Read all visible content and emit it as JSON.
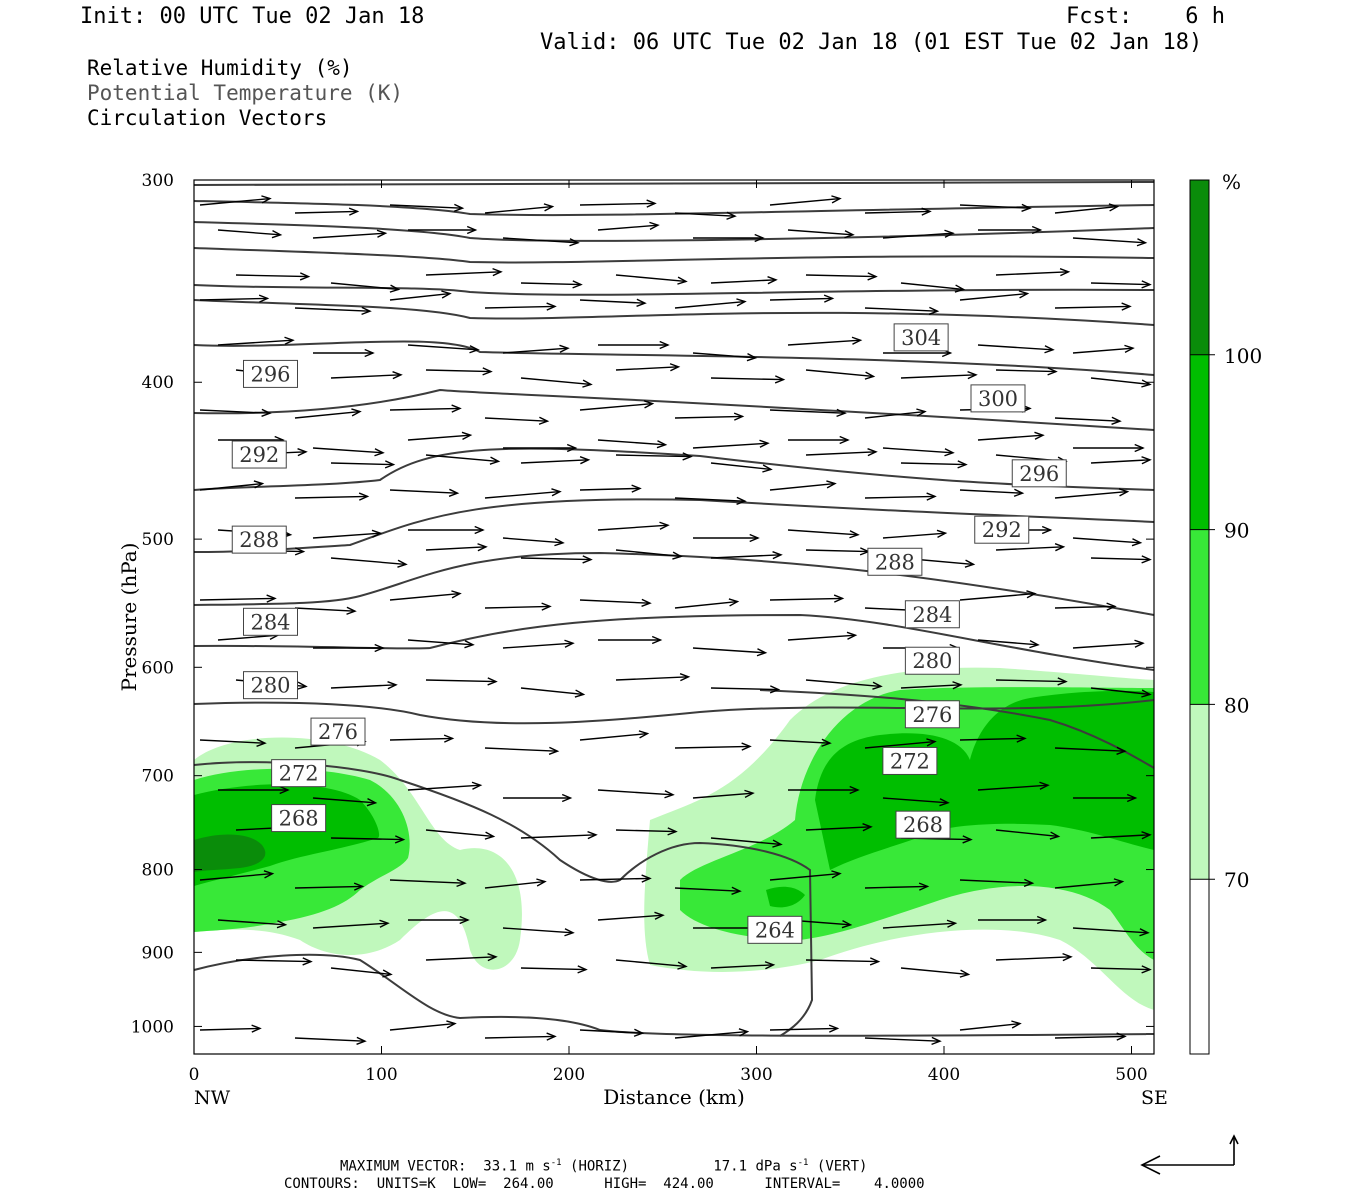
{
  "header": {
    "init": "Init: 00 UTC Tue 02 Jan 18",
    "fcst": "Fcst:    6 h",
    "valid": "Valid: 06 UTC Tue 02 Jan 18 (01 EST Tue 02 Jan 18)"
  },
  "legend": {
    "line1": "Relative Humidity (%)",
    "line2": "Potential Temperature (K)",
    "line3": "Circulation Vectors"
  },
  "footer": {
    "max_vector_label": "MAXIMUM VECTOR:",
    "horiz_value": "33.1 m s",
    "horiz_exp": "-1",
    "horiz_unit": "(HORIZ)",
    "vert_value": "17.1 dPa s",
    "vert_exp": "-1",
    "vert_unit": "(VERT)",
    "contours": "CONTOURS:  UNITS=K  LOW=  264.00      HIGH=  424.00      INTERVAL=    4.0000"
  },
  "colors": {
    "rh70": "#c0f8bc",
    "rh80": "#38e838",
    "rh90": "#00be00",
    "rh100": "#0a8c0a",
    "theta_line": "#3c3c3c",
    "arrow": "#000000"
  },
  "chart_data": {
    "type": "cross-section",
    "xlabel": "Distance (km)",
    "ylabel": "Pressure (hPa)",
    "x_ticks": [
      0,
      100,
      200,
      300,
      400,
      500
    ],
    "y_ticks": [
      300,
      400,
      500,
      600,
      700,
      800,
      900,
      1000
    ],
    "xlim": [
      0,
      512
    ],
    "ylim": [
      1040,
      300
    ],
    "y_scale": "log",
    "left_end_label": "NW",
    "right_end_label": "SE",
    "colorbar": {
      "unit": "%",
      "levels": [
        70,
        80,
        90,
        100
      ],
      "colors": [
        "#ffffff",
        "#c0f8bc",
        "#38e838",
        "#00be00",
        "#0a8c0a"
      ]
    },
    "theta_labels": [
      {
        "label": "304",
        "x": 375,
        "p": 375
      },
      {
        "label": "300",
        "x": 416,
        "p": 409
      },
      {
        "label": "296",
        "x": 28,
        "p": 395
      },
      {
        "label": "296",
        "x": 438,
        "p": 455
      },
      {
        "label": "292",
        "x": 22,
        "p": 443
      },
      {
        "label": "292",
        "x": 418,
        "p": 493
      },
      {
        "label": "288",
        "x": 22,
        "p": 500
      },
      {
        "label": "288",
        "x": 361,
        "p": 516
      },
      {
        "label": "284",
        "x": 28,
        "p": 562
      },
      {
        "label": "284",
        "x": 381,
        "p": 556
      },
      {
        "label": "280",
        "x": 28,
        "p": 615
      },
      {
        "label": "280",
        "x": 381,
        "p": 594
      },
      {
        "label": "276",
        "x": 64,
        "p": 657
      },
      {
        "label": "276",
        "x": 381,
        "p": 641
      },
      {
        "label": "272",
        "x": 43,
        "p": 697
      },
      {
        "label": "272",
        "x": 369,
        "p": 685
      },
      {
        "label": "268",
        "x": 43,
        "p": 743
      },
      {
        "label": "268",
        "x": 376,
        "p": 750
      },
      {
        "label": "264",
        "x": 297,
        "p": 871
      }
    ]
  }
}
